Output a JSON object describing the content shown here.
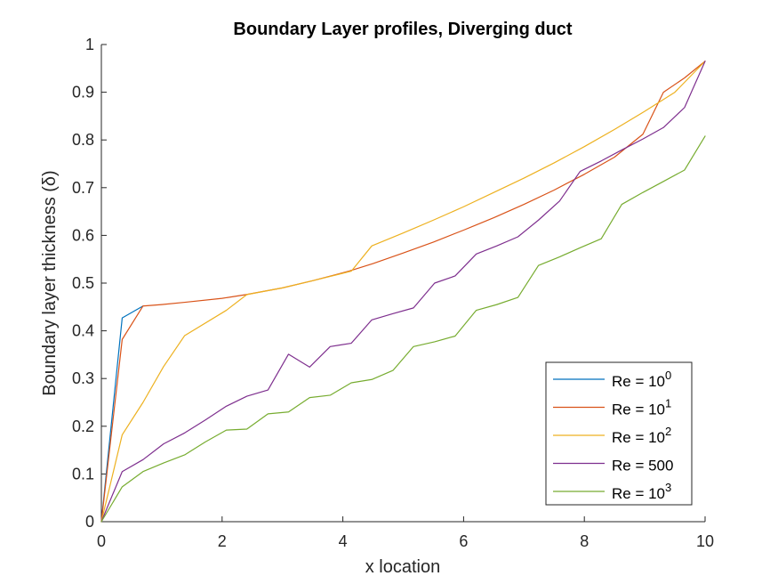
{
  "chart_data": {
    "type": "line",
    "title": "Boundary Layer profiles, Diverging duct",
    "xlabel": "x location",
    "ylabel": "Boundary layer thickness (δ)",
    "xlim": [
      0,
      10
    ],
    "ylim": [
      0,
      1
    ],
    "xticks": [
      "0",
      "2",
      "4",
      "6",
      "8",
      "10"
    ],
    "yticks": [
      "0",
      "0.1",
      "0.2",
      "0.3",
      "0.4",
      "0.5",
      "0.6",
      "0.7",
      "0.8",
      "0.9",
      "1"
    ],
    "grid": false,
    "legend_position": "bottom-right",
    "series": [
      {
        "name": "Re = 10^0",
        "legend_base": "Re = 10",
        "legend_exp": "0",
        "color": "#0072BD",
        "x": [
          0,
          0.345,
          0.69
        ],
        "y": [
          0,
          0.427,
          0.452
        ]
      },
      {
        "name": "Re = 10^1",
        "legend_base": "Re = 10",
        "legend_exp": "1",
        "color": "#D95319",
        "x": [
          0,
          0.345,
          0.69,
          1,
          1.4,
          2,
          2.4,
          3,
          3.5,
          4.1,
          4.5,
          5,
          5.5,
          6,
          6.5,
          7,
          7.5,
          8,
          8.5,
          8.97,
          9.31,
          9.66,
          10
        ],
        "y": [
          0,
          0.382,
          0.452,
          0.455,
          0.46,
          0.468,
          0.476,
          0.49,
          0.505,
          0.525,
          0.541,
          0.563,
          0.586,
          0.611,
          0.637,
          0.665,
          0.695,
          0.728,
          0.764,
          0.812,
          0.9,
          0.93,
          0.965
        ]
      },
      {
        "name": "Re = 10^2",
        "legend_base": "Re = 10",
        "legend_exp": "2",
        "color": "#EDB120",
        "x": [
          0,
          0.345,
          0.69,
          1.03,
          1.38,
          2.07,
          2.41,
          3,
          3.5,
          4.14,
          4.48,
          5,
          5.5,
          6,
          6.5,
          7,
          7.5,
          8,
          8.5,
          9,
          9.5,
          10
        ],
        "y": [
          0,
          0.182,
          0.25,
          0.325,
          0.39,
          0.443,
          0.476,
          0.49,
          0.505,
          0.525,
          0.578,
          0.605,
          0.632,
          0.66,
          0.69,
          0.72,
          0.752,
          0.786,
          0.822,
          0.86,
          0.9,
          0.965
        ]
      },
      {
        "name": "Re = 500",
        "legend_base": "Re = 500",
        "legend_exp": "",
        "color": "#7E2F8E",
        "x": [
          0,
          0.345,
          0.69,
          1.03,
          1.38,
          1.72,
          2.07,
          2.41,
          2.76,
          3.1,
          3.45,
          3.79,
          4.14,
          4.48,
          4.83,
          5.17,
          5.52,
          5.86,
          6.21,
          6.55,
          6.9,
          7.24,
          7.59,
          7.93,
          8.28,
          8.62,
          8.97,
          9.31,
          9.66,
          10
        ],
        "y": [
          0,
          0.105,
          0.13,
          0.163,
          0.186,
          0.213,
          0.242,
          0.263,
          0.276,
          0.351,
          0.324,
          0.367,
          0.374,
          0.423,
          0.436,
          0.448,
          0.5,
          0.515,
          0.561,
          0.578,
          0.597,
          0.632,
          0.672,
          0.734,
          0.756,
          0.779,
          0.802,
          0.826,
          0.868,
          0.965
        ]
      },
      {
        "name": "Re = 10^3",
        "legend_base": "Re = 10",
        "legend_exp": "3",
        "color": "#77AC30",
        "x": [
          0,
          0.345,
          0.69,
          1.03,
          1.38,
          1.72,
          2.07,
          2.41,
          2.76,
          3.1,
          3.45,
          3.79,
          4.14,
          4.48,
          4.83,
          5.17,
          5.52,
          5.86,
          6.21,
          6.55,
          6.9,
          7.24,
          7.59,
          7.93,
          8.28,
          8.62,
          8.97,
          9.31,
          9.66,
          10
        ],
        "y": [
          0,
          0.073,
          0.105,
          0.123,
          0.14,
          0.167,
          0.192,
          0.194,
          0.226,
          0.23,
          0.26,
          0.265,
          0.291,
          0.298,
          0.317,
          0.367,
          0.377,
          0.389,
          0.443,
          0.455,
          0.47,
          0.537,
          0.555,
          0.574,
          0.593,
          0.665,
          0.69,
          0.713,
          0.737,
          0.808
        ]
      }
    ]
  }
}
